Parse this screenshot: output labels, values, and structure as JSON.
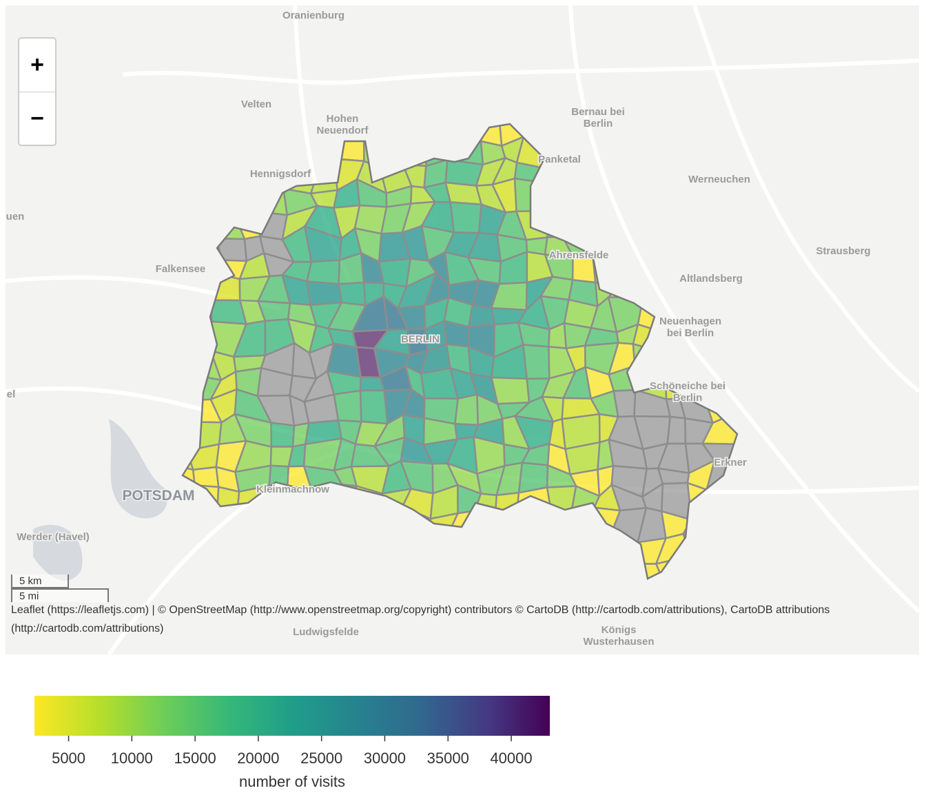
{
  "map": {
    "labels": [
      [
        "Oranienburg"
      ],
      [
        "Velten"
      ],
      [
        "Hohen",
        "Neuendorf"
      ],
      [
        "Bernau bei",
        "Berlin"
      ],
      [
        "Hennigsdorf"
      ],
      [
        "Panketal"
      ],
      [
        "Werneuchen"
      ],
      [
        "uen"
      ],
      [
        "Strausberg"
      ],
      [
        "Falkensee"
      ],
      [
        "Ahrensfelde"
      ],
      [
        "Altlandsberg"
      ],
      [
        "Neuenhagen",
        "bei Berlin"
      ],
      [
        "BERLIN"
      ],
      [
        "Schöneiche bei",
        "Berlin"
      ],
      [
        "el"
      ],
      [
        "Erkner"
      ],
      [
        "POTSDAM"
      ],
      [
        "Kleinmachnow"
      ],
      [
        "Werder (Havel)"
      ],
      [
        "Ludwigsfelde"
      ],
      [
        "Königs",
        "Wusterhausen"
      ]
    ],
    "zoom_in": "+",
    "zoom_out": "−",
    "scale_km": "5 km",
    "scale_mi": "5 mi",
    "attribution": "Leaflet (https://leafletjs.com) | © OpenStreetMap (http://www.openstreetmap.org/copyright) contributors © CartoDB (http://cartodb.com/attributions), CartoDB attributions (http://cartodb.com/attributions)"
  },
  "colorbar": {
    "label": "number of visits",
    "lim": [
      2300,
      43050
    ],
    "ticks": [
      5000,
      10000,
      15000,
      20000,
      25000,
      30000,
      35000,
      40000
    ],
    "colormap": "viridis"
  }
}
